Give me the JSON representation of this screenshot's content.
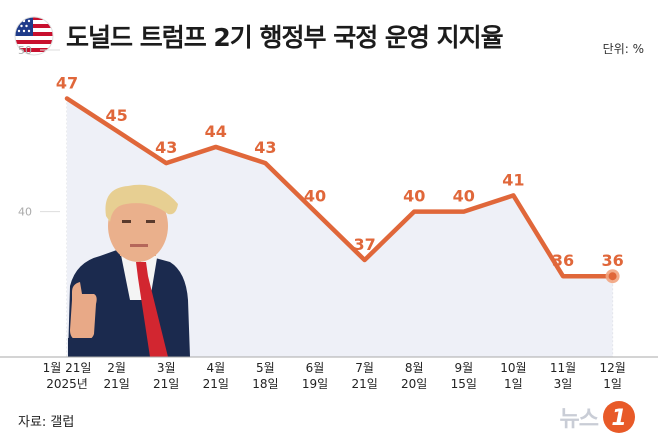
{
  "title": "도널드 트럼프 2기 행정부 국정 운영 지지율",
  "unit_label": "단위: %",
  "source": "자료: 갤럽",
  "logo": {
    "text": "뉴스",
    "mark": "1"
  },
  "colors": {
    "line": "#e0673a",
    "area": "#eef0f7",
    "axis": "#aaaaaa",
    "grid": "#d6d8de"
  },
  "icons": {
    "flag": "us-flag-icon",
    "photo": "trump-thumbs-up-photo"
  },
  "chart_data": {
    "type": "line",
    "title": "도널드 트럼프 2기 행정부 국정 운영 지지율",
    "ylabel": "",
    "xlabel": "",
    "unit": "%",
    "ylim": [
      31,
      50
    ],
    "yticks": [
      40,
      50
    ],
    "grid": "vertical",
    "categories": [
      [
        "1월 21일",
        "2025년"
      ],
      [
        "2월",
        "21일"
      ],
      [
        "3월",
        "21일"
      ],
      [
        "4월",
        "21일"
      ],
      [
        "5월",
        "18일"
      ],
      [
        "6월",
        "19일"
      ],
      [
        "7월",
        "21일"
      ],
      [
        "8월",
        "20일"
      ],
      [
        "9월",
        "15일"
      ],
      [
        "10월",
        "1일"
      ],
      [
        "11월",
        "3일"
      ],
      [
        "12월",
        "1일"
      ]
    ],
    "values": [
      47,
      45,
      43,
      44,
      43,
      40,
      37,
      40,
      40,
      41,
      36,
      36
    ]
  }
}
